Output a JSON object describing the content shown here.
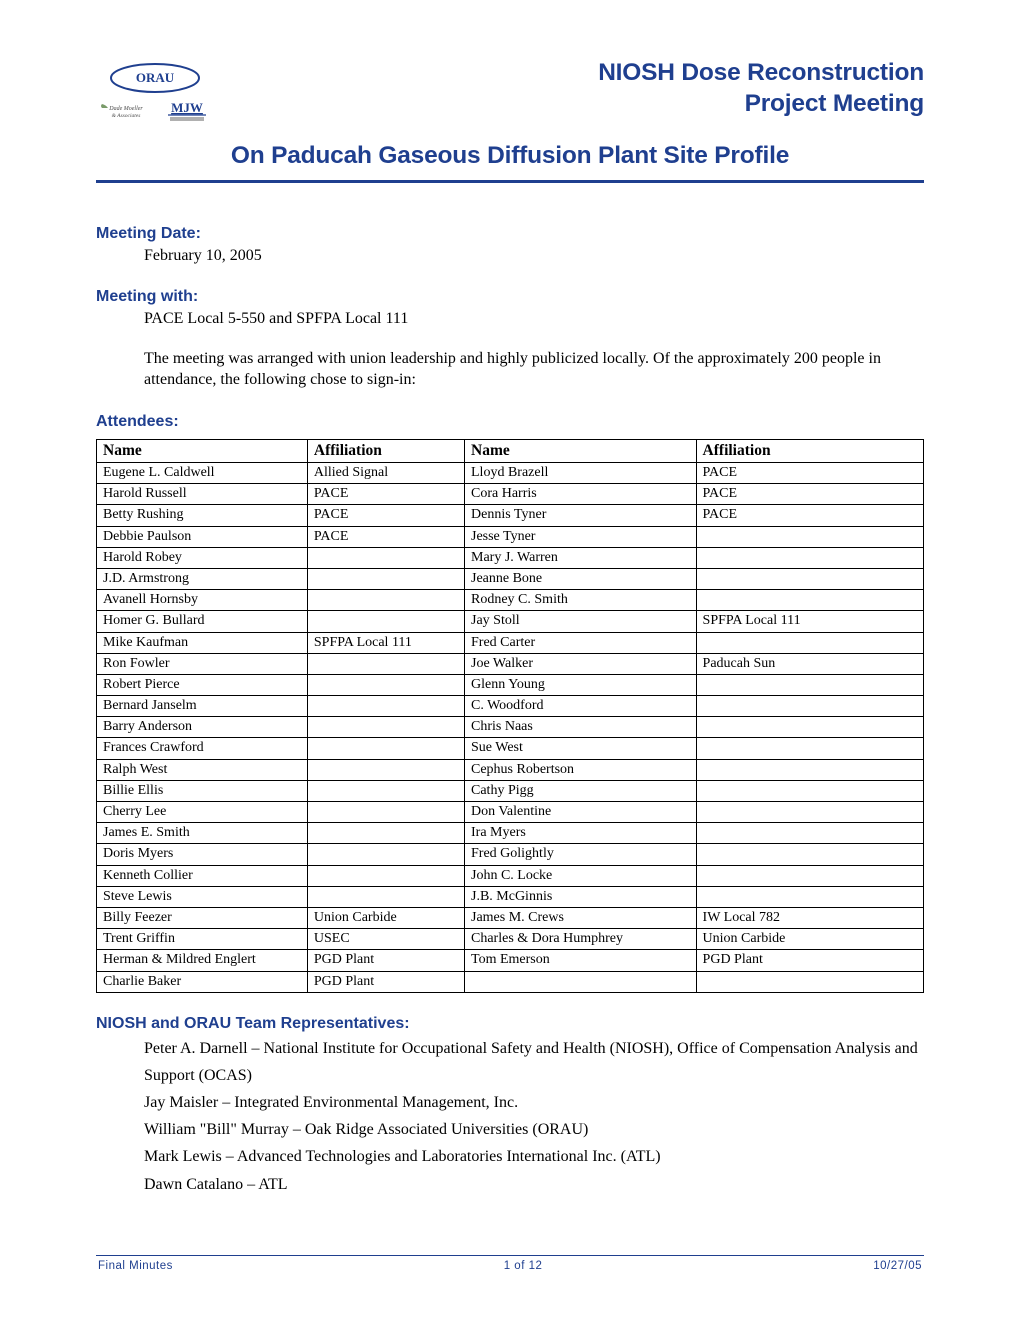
{
  "colors": {
    "brand": "#1f3f8f",
    "text": "#000000",
    "bg": "#ffffff"
  },
  "header": {
    "logo_text_top": "ORAU",
    "logo_text_mid": "Dade Moeller & Associates",
    "logo_text_right": "MJW",
    "title_line1": "NIOSH Dose Reconstruction",
    "title_line2": "Project Meeting",
    "title_line3": "On Paducah Gaseous Diffusion Plant Site Profile"
  },
  "meeting": {
    "date_label": "Meeting Date:",
    "date_value": "February 10, 2005",
    "with_label": "Meeting with:",
    "with_value": "PACE Local 5-550 and SPFPA Local 111",
    "intro_para": "The meeting was arranged with union leadership and highly publicized locally. Of the approximately 200 people in attendance, the following chose to sign-in:"
  },
  "attendees": {
    "label": "Attendees:",
    "columns": [
      "Name",
      "Affiliation",
      "Name",
      "Affiliation"
    ],
    "rows": [
      [
        "Eugene L. Caldwell",
        "Allied Signal",
        "Lloyd Brazell",
        "PACE"
      ],
      [
        "Harold Russell",
        "PACE",
        "Cora Harris",
        "PACE"
      ],
      [
        "Betty Rushing",
        "PACE",
        "Dennis Tyner",
        "PACE"
      ],
      [
        "Debbie Paulson",
        "PACE",
        "Jesse Tyner",
        ""
      ],
      [
        "Harold Robey",
        "",
        "Mary J. Warren",
        ""
      ],
      [
        "J.D. Armstrong",
        "",
        "Jeanne Bone",
        ""
      ],
      [
        "Avanell Hornsby",
        "",
        "Rodney C. Smith",
        ""
      ],
      [
        "Homer G. Bullard",
        "",
        "Jay Stoll",
        "SPFPA Local 111"
      ],
      [
        "Mike Kaufman",
        "SPFPA Local 111",
        "Fred Carter",
        ""
      ],
      [
        "Ron Fowler",
        "",
        "Joe Walker",
        "Paducah Sun"
      ],
      [
        "Robert Pierce",
        "",
        "Glenn Young",
        ""
      ],
      [
        "Bernard Janselm",
        "",
        "C. Woodford",
        ""
      ],
      [
        "Barry Anderson",
        "",
        "Chris Naas",
        ""
      ],
      [
        "Frances Crawford",
        "",
        "Sue West",
        ""
      ],
      [
        "Ralph West",
        "",
        "Cephus Robertson",
        ""
      ],
      [
        "Billie Ellis",
        "",
        "Cathy Pigg",
        ""
      ],
      [
        "Cherry Lee",
        "",
        "Don Valentine",
        ""
      ],
      [
        "James E. Smith",
        "",
        "Ira Myers",
        ""
      ],
      [
        "Doris Myers",
        "",
        "Fred Golightly",
        ""
      ],
      [
        "Kenneth Collier",
        "",
        "John C. Locke",
        ""
      ],
      [
        "Steve Lewis",
        "",
        "J.B. McGinnis",
        ""
      ],
      [
        "Billy Feezer",
        "Union Carbide",
        "James M. Crews",
        "IW Local 782"
      ],
      [
        "Trent Griffin",
        "USEC",
        "Charles & Dora Humphrey",
        "Union Carbide"
      ],
      [
        "Herman & Mildred Englert",
        "PGD Plant",
        "Tom Emerson",
        "PGD Plant"
      ],
      [
        "Charlie Baker",
        "PGD Plant",
        "",
        ""
      ]
    ]
  },
  "reps": {
    "label": "NIOSH and ORAU Team Representatives:",
    "items": [
      "Peter A. Darnell – National Institute for Occupational Safety and Health (NIOSH), Office of Compensation Analysis and Support (OCAS)",
      "Jay Maisler – Integrated Environmental Management, Inc.",
      "William \"Bill\" Murray – Oak Ridge Associated Universities (ORAU)",
      "Mark Lewis – Advanced Technologies and Laboratories International Inc. (ATL)",
      "Dawn Catalano – ATL"
    ]
  },
  "footer": {
    "left": "Final Minutes",
    "center": "1 of 12",
    "right": "10/27/05"
  }
}
